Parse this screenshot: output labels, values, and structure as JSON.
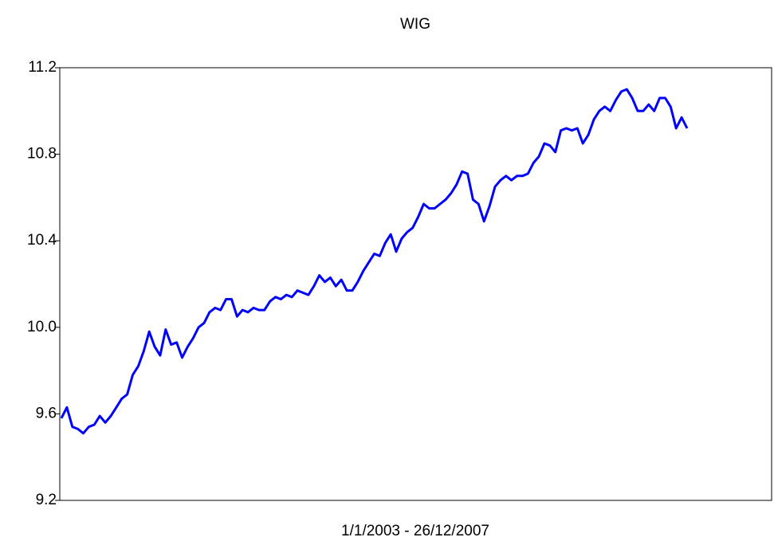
{
  "chart_data": {
    "type": "line",
    "title": "WIG",
    "x_label": "1/1/2003 - 26/12/2007",
    "series": [
      {
        "name": "WIG",
        "color": "#0000ff",
        "values": [
          9.58,
          9.63,
          9.54,
          9.53,
          9.51,
          9.54,
          9.55,
          9.59,
          9.56,
          9.59,
          9.63,
          9.67,
          9.69,
          9.78,
          9.82,
          9.89,
          9.98,
          9.91,
          9.87,
          9.99,
          9.92,
          9.93,
          9.86,
          9.91,
          9.95,
          10.0,
          10.02,
          10.07,
          10.09,
          10.08,
          10.13,
          10.13,
          10.05,
          10.08,
          10.07,
          10.09,
          10.08,
          10.08,
          10.12,
          10.14,
          10.13,
          10.15,
          10.14,
          10.17,
          10.16,
          10.15,
          10.19,
          10.24,
          10.21,
          10.23,
          10.19,
          10.22,
          10.17,
          10.17,
          10.21,
          10.26,
          10.3,
          10.34,
          10.33,
          10.39,
          10.43,
          10.35,
          10.41,
          10.44,
          10.46,
          10.51,
          10.57,
          10.55,
          10.55,
          10.57,
          10.59,
          10.62,
          10.66,
          10.72,
          10.71,
          10.59,
          10.57,
          10.49,
          10.56,
          10.65,
          10.68,
          10.7,
          10.68,
          10.7,
          10.7,
          10.71,
          10.76,
          10.79,
          10.85,
          10.84,
          10.81,
          10.91,
          10.92,
          10.91,
          10.92,
          10.85,
          10.89,
          10.96,
          11.0,
          11.02,
          11.0,
          11.05,
          11.09,
          11.1,
          11.06,
          11.0,
          11.0,
          11.03,
          11.0,
          11.06,
          11.06,
          11.02,
          10.92,
          10.97,
          10.92
        ]
      }
    ],
    "ylim": [
      9.2,
      11.2
    ],
    "yticks": [
      9.2,
      9.6,
      {
        "value": 10,
        "label": "10.0"
      },
      10.4,
      10.8,
      11.2
    ]
  }
}
